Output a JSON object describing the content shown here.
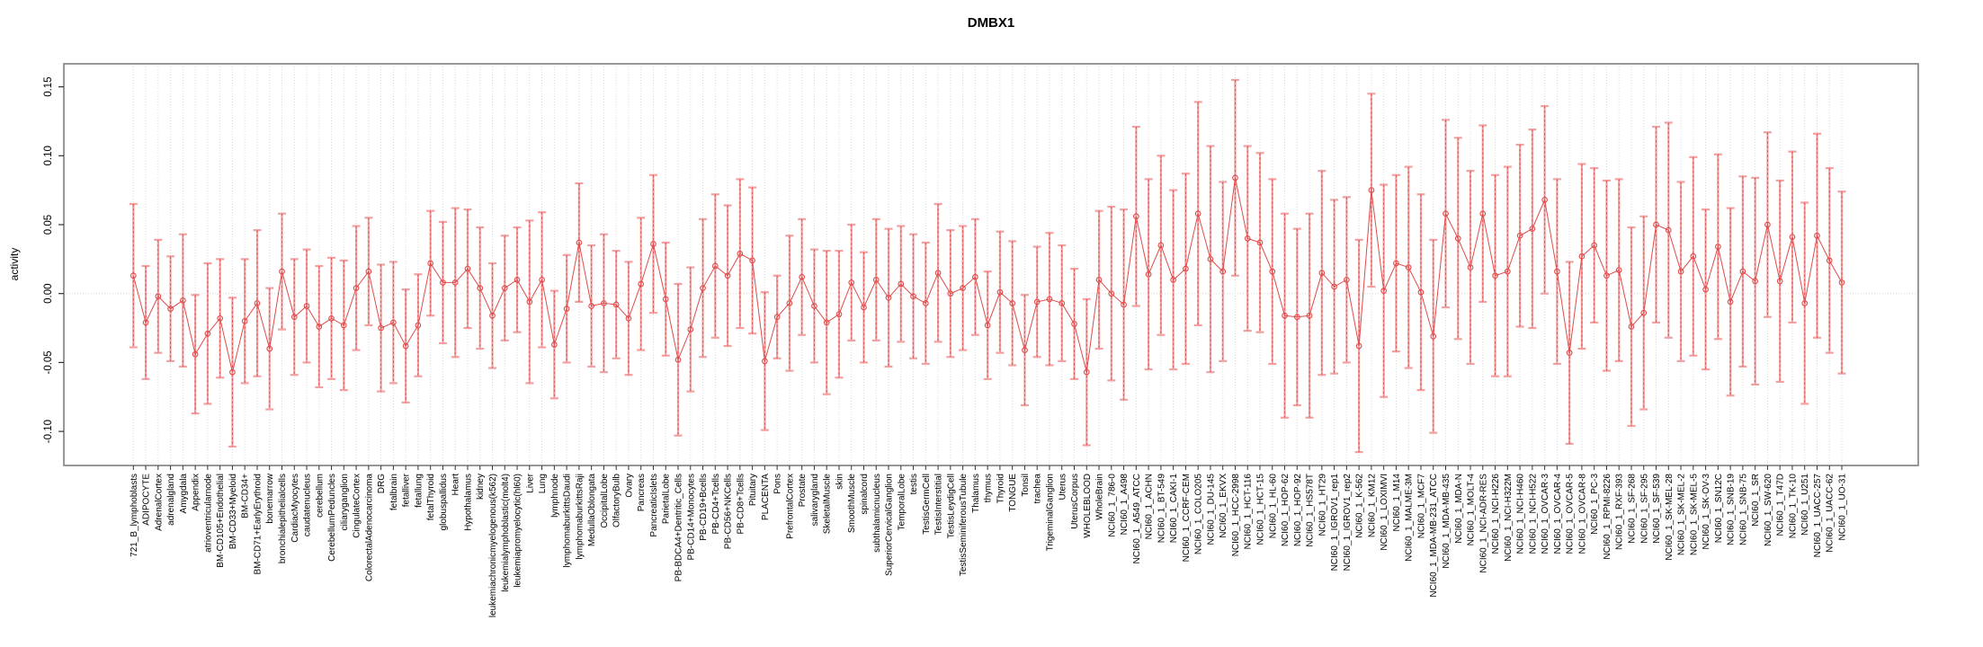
{
  "chart_data": {
    "type": "line",
    "subtype": "errorbar-series",
    "title": "DMBX1",
    "xlabel": "",
    "ylabel": "activity",
    "ylim": [
      -0.125,
      0.167
    ],
    "grid": "vertical dotted gridline per category, dotted horizontal line at 0",
    "legend_position": "none",
    "ytick_values": [
      -0.1,
      -0.05,
      0.0,
      0.05,
      0.1,
      0.15
    ],
    "ytick_labels": [
      "-0.10",
      "-0.05",
      "0.00",
      "0.05",
      "0.10",
      "0.15"
    ],
    "categories": [
      "721_B_lymphoblasts",
      "ADIPOCYTE",
      "AdrenalCortex",
      "adrenalgland",
      "Amygdala",
      "Appendix",
      "atrioventricularnode",
      "BM-CD105+Endothelial",
      "BM-CD33+Myeloid",
      "BM-CD34+",
      "BM-CD71+EarlyErythroid",
      "bonemarrow",
      "bronchialepithelialcells",
      "CardiacMyocytes",
      "caudatenucleus",
      "cerebellum",
      "CerebellumPeduncles",
      "ciliaryganglion",
      "CingulateCortex",
      "ColorectalAdenocarcinoma",
      "DRG",
      "fetalbrain",
      "fetalliver",
      "fetallung",
      "fetalThyroid",
      "globuspallidus",
      "Heart",
      "Hypothalamus",
      "kidney",
      "leukemiachronicmyelogenous(k562)",
      "leukemialymphoblastic(molt4)",
      "leukemiapromyelocytic(hl60)",
      "Liver",
      "Lung",
      "lymphnode",
      "lymphomaburkittsDaudi",
      "lymphomaburkittsRaji",
      "MedullaOblongata",
      "OccipitalLobe",
      "OlfactoryBulb",
      "Ovary",
      "Pancreas",
      "PancreaticIslets",
      "ParietalLobe",
      "PB-BDCA4+Dentritic_Cells",
      "PB-CD14+Monocytes",
      "PB-CD19+Bcells",
      "PB-CD4+Tcells",
      "PB-CD56+NKCells",
      "PB-CD8+Tcells",
      "Pituitary",
      "PLACENTA",
      "Pons",
      "PrefrontalCortex",
      "Prostate",
      "salivarygland",
      "SkeletalMuscle",
      "skin",
      "SmoothMuscle",
      "spinalcord",
      "subthalamicnucleus",
      "SuperiorCervicalGanglion",
      "TemporalLobe",
      "testis",
      "TestisGermCell",
      "TestisInterstitial",
      "TestisLeydigCell",
      "TestisSeminiferousTubule",
      "Thalamus",
      "thymus",
      "Thyroid",
      "TONGUE",
      "Tonsil",
      "trachea",
      "TrigeminalGanglion",
      "Uterus",
      "UterusCorpus",
      "WHOLEBLOOD",
      "WholeBrain",
      "NCI60_1_786-0",
      "NCI60_1_A498",
      "NCI60_1_A549_ATCC",
      "NCI60_1_ACHN",
      "NCI60_1_BT-549",
      "NCI60_1_CAKI-1",
      "NCI60_1_CCRF-CEM",
      "NCI60_1_COLO205",
      "NCI60_1_DU-145",
      "NCI60_1_EKVX",
      "NCI60_1_HCC-2998",
      "NCI60_1_HCT-116",
      "NCI60_1_HCT-15",
      "NCI60_1_HL-60",
      "NCI60_1_HOP-62",
      "NCI60_1_HOP-92",
      "NCI60_1_HS578T",
      "NCI60_1_HT29",
      "NCI60_1_IGROV1_rep1",
      "NCI60_1_IGROV1_rep2",
      "NCI60_1_K-562",
      "NCI60_1_KM12",
      "NCI60_1_LOXIMVI",
      "NCI60_1_M14",
      "NCI60_1_MALME-3M",
      "NCI60_1_MCF7",
      "NCI60_1_MDA-MB-231_ATCC",
      "NCI60_1_MDA-MB-435",
      "NCI60_1_MDA-N",
      "NCI60_1_MOLT-4",
      "NCI60_1_NCI-ADR-RES",
      "NCI60_1_NCI-H226",
      "NCI60_1_NCI-H322M",
      "NCI60_1_NCI-H460",
      "NCI60_1_NCI-H522",
      "NCI60_1_OVCAR-3",
      "NCI60_1_OVCAR-4",
      "NCI60_1_OVCAR-5",
      "NCI60_1_OVCAR-8",
      "NCI60_1_PC-3",
      "NCI60_1_RPMI-8226",
      "NCI60_1_RXF-393",
      "NCI60_1_SF-268",
      "NCI60_1_SF-295",
      "NCI60_1_SF-539",
      "NCI60_1_SK-MEL-28",
      "NCI60_1_SK-MEL-2",
      "NCI60_1_SK-MEL-5",
      "NCI60_1_SK-OV-3",
      "NCI60_1_SN12C",
      "NCI60_1_SNB-19",
      "NCI60_1_SNB-75",
      "NCI60_1_SR",
      "NCI60_1_SW-620",
      "NCI60_1_T47D",
      "NCI60_1_TK-10",
      "NCI60_1_U251",
      "NCI60_1_UACC-257",
      "NCI60_1_UACC-62",
      "NCI60_1_UO-31"
    ],
    "series": [
      {
        "name": "activity",
        "mean": [
          0.013,
          -0.021,
          -0.002,
          -0.011,
          -0.005,
          -0.044,
          -0.029,
          -0.018,
          -0.057,
          -0.02,
          -0.007,
          -0.04,
          0.016,
          -0.017,
          -0.009,
          -0.024,
          -0.018,
          -0.023,
          0.004,
          0.016,
          -0.025,
          -0.021,
          -0.038,
          -0.023,
          0.022,
          0.008,
          0.008,
          0.018,
          0.004,
          -0.016,
          0.004,
          0.01,
          -0.006,
          0.01,
          -0.037,
          -0.011,
          0.037,
          -0.009,
          -0.007,
          -0.008,
          -0.018,
          0.007,
          0.036,
          -0.004,
          -0.048,
          -0.026,
          0.004,
          0.02,
          0.013,
          0.029,
          0.024,
          -0.049,
          -0.017,
          -0.007,
          0.012,
          -0.009,
          -0.021,
          -0.015,
          0.008,
          -0.01,
          0.01,
          -0.003,
          0.007,
          -0.002,
          -0.007,
          0.015,
          0.0,
          0.004,
          0.012,
          -0.023,
          0.001,
          -0.007,
          -0.041,
          -0.006,
          -0.004,
          -0.007,
          -0.022,
          -0.057,
          0.01,
          0.0,
          -0.008,
          0.056,
          0.014,
          0.035,
          0.01,
          0.018,
          0.058,
          0.025,
          0.016,
          0.084,
          0.04,
          0.037,
          0.016,
          -0.016,
          -0.017,
          -0.016,
          0.015,
          0.005,
          0.01,
          -0.038,
          0.075,
          0.002,
          0.022,
          0.019,
          0.001,
          -0.031,
          0.058,
          0.04,
          0.019,
          0.058,
          0.013,
          0.016,
          0.042,
          0.047,
          0.068,
          0.016,
          -0.043,
          0.027,
          0.035,
          0.013,
          0.017,
          -0.024,
          -0.014,
          0.05,
          0.046,
          0.016,
          0.027,
          0.003,
          0.034,
          -0.006,
          0.016,
          0.009,
          0.05,
          0.009,
          0.041,
          -0.007,
          0.042,
          0.024,
          0.008
        ],
        "ci_low": [
          -0.039,
          -0.062,
          -0.043,
          -0.049,
          -0.053,
          -0.087,
          -0.08,
          -0.061,
          -0.111,
          -0.065,
          -0.06,
          -0.084,
          -0.026,
          -0.059,
          -0.05,
          -0.068,
          -0.062,
          -0.07,
          -0.041,
          -0.023,
          -0.071,
          -0.065,
          -0.079,
          -0.06,
          -0.016,
          -0.036,
          -0.046,
          -0.025,
          -0.04,
          -0.054,
          -0.034,
          -0.028,
          -0.065,
          -0.039,
          -0.076,
          -0.05,
          -0.006,
          -0.053,
          -0.057,
          -0.047,
          -0.059,
          -0.041,
          -0.014,
          -0.045,
          -0.103,
          -0.071,
          -0.046,
          -0.032,
          -0.038,
          -0.025,
          -0.029,
          -0.099,
          -0.047,
          -0.056,
          -0.03,
          -0.05,
          -0.073,
          -0.061,
          -0.034,
          -0.05,
          -0.034,
          -0.053,
          -0.035,
          -0.047,
          -0.051,
          -0.035,
          -0.046,
          -0.041,
          -0.03,
          -0.062,
          -0.043,
          -0.052,
          -0.081,
          -0.046,
          -0.052,
          -0.049,
          -0.062,
          -0.11,
          -0.04,
          -0.063,
          -0.077,
          -0.009,
          -0.055,
          -0.03,
          -0.055,
          -0.051,
          -0.023,
          -0.057,
          -0.049,
          0.013,
          -0.027,
          -0.028,
          -0.051,
          -0.09,
          -0.081,
          -0.09,
          -0.059,
          -0.058,
          -0.05,
          -0.115,
          0.005,
          -0.075,
          -0.042,
          -0.054,
          -0.07,
          -0.101,
          -0.01,
          -0.033,
          -0.051,
          -0.006,
          -0.06,
          -0.06,
          -0.024,
          -0.025,
          0.0,
          -0.051,
          -0.109,
          -0.04,
          -0.021,
          -0.056,
          -0.049,
          -0.096,
          -0.084,
          -0.021,
          -0.032,
          -0.049,
          -0.045,
          -0.055,
          -0.033,
          -0.074,
          -0.053,
          -0.066,
          -0.017,
          -0.064,
          -0.021,
          -0.08,
          -0.032,
          -0.043,
          -0.058
        ],
        "ci_high": [
          0.065,
          0.02,
          0.039,
          0.027,
          0.043,
          -0.001,
          0.022,
          0.025,
          -0.003,
          0.025,
          0.046,
          0.004,
          0.058,
          0.025,
          0.032,
          0.02,
          0.026,
          0.024,
          0.049,
          0.055,
          0.021,
          0.023,
          0.003,
          0.014,
          0.06,
          0.052,
          0.062,
          0.061,
          0.048,
          0.022,
          0.042,
          0.048,
          0.053,
          0.059,
          0.002,
          0.028,
          0.08,
          0.035,
          0.043,
          0.031,
          0.023,
          0.055,
          0.086,
          0.037,
          0.007,
          0.019,
          0.054,
          0.072,
          0.064,
          0.083,
          0.077,
          0.001,
          0.013,
          0.042,
          0.054,
          0.032,
          0.031,
          0.031,
          0.05,
          0.03,
          0.054,
          0.047,
          0.049,
          0.043,
          0.037,
          0.065,
          0.046,
          0.049,
          0.054,
          0.016,
          0.045,
          0.038,
          -0.001,
          0.034,
          0.044,
          0.035,
          0.018,
          -0.004,
          0.06,
          0.063,
          0.061,
          0.121,
          0.083,
          0.1,
          0.075,
          0.087,
          0.139,
          0.107,
          0.081,
          0.155,
          0.107,
          0.102,
          0.083,
          0.058,
          0.047,
          0.058,
          0.089,
          0.068,
          0.07,
          0.039,
          0.145,
          0.079,
          0.086,
          0.092,
          0.072,
          0.039,
          0.126,
          0.113,
          0.089,
          0.122,
          0.086,
          0.092,
          0.108,
          0.119,
          0.136,
          0.083,
          0.023,
          0.094,
          0.091,
          0.082,
          0.083,
          0.048,
          0.056,
          0.121,
          0.124,
          0.081,
          0.099,
          0.061,
          0.101,
          0.062,
          0.085,
          0.084,
          0.117,
          0.082,
          0.103,
          0.066,
          0.116,
          0.091,
          0.074
        ]
      }
    ],
    "colors": {
      "point_and_line": "#e04b4b",
      "error_bar": "#f2a0a0",
      "error_bar_dash": "#dd4444",
      "grid": "#d8d8d8",
      "border": "#7f7f7f",
      "text": "#000000"
    }
  }
}
